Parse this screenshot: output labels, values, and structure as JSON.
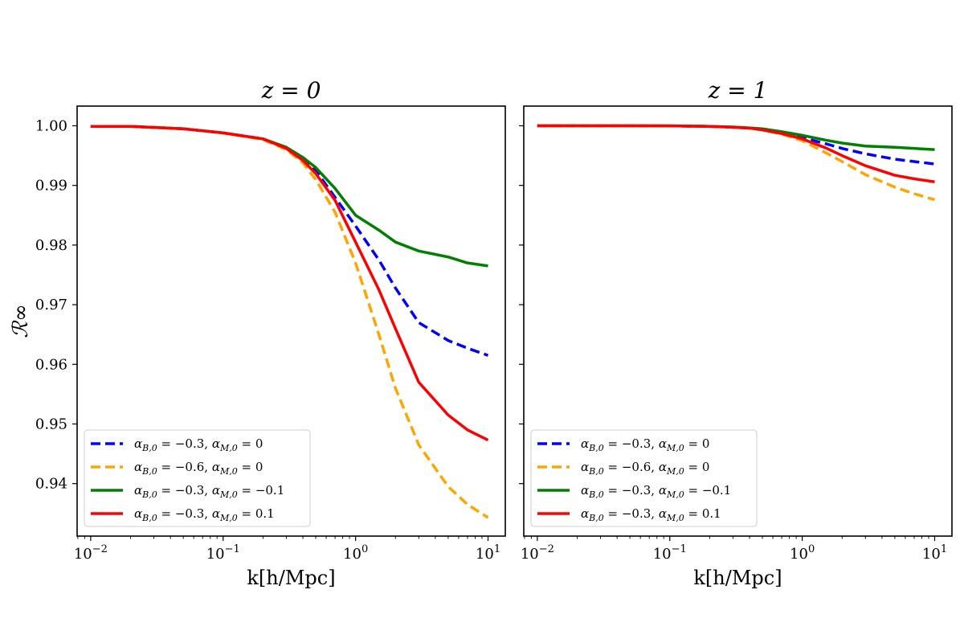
{
  "figure_title": "",
  "chart_data": [
    {
      "type": "line",
      "title": "z = 0",
      "xlabel": "k[h/Mpc]",
      "ylabel": "ℛ∞",
      "xscale": "log",
      "xlim": [
        0.0079,
        13.5
      ],
      "ylim": [
        0.9312,
        1.0033
      ],
      "xticks": [
        {
          "value": 0.01,
          "base": "10",
          "exp": "−2"
        },
        {
          "value": 0.1,
          "base": "10",
          "exp": "−1"
        },
        {
          "value": 1,
          "base": "10",
          "exp": "0"
        },
        {
          "value": 10,
          "base": "10",
          "exp": "1"
        }
      ],
      "yticks": [
        {
          "value": 0.94,
          "label": "0.94"
        },
        {
          "value": 0.95,
          "label": "0.95"
        },
        {
          "value": 0.96,
          "label": "0.96"
        },
        {
          "value": 0.97,
          "label": "0.97"
        },
        {
          "value": 0.98,
          "label": "0.98"
        },
        {
          "value": 0.99,
          "label": "0.99"
        },
        {
          "value": 1.0,
          "label": "1.00"
        }
      ],
      "show_ytick_labels": true,
      "legend": "lower-left",
      "x": [
        0.01,
        0.02,
        0.05,
        0.1,
        0.2,
        0.3,
        0.4,
        0.5,
        0.7,
        1.0,
        1.5,
        2.0,
        3.0,
        5.0,
        7.0,
        10.0
      ],
      "series": [
        {
          "name": "αB,0 = −0.3, αM,0 = 0",
          "color": "#0000ff",
          "dash": true,
          "values": [
            0.9999,
            0.9999,
            0.9995,
            0.9988,
            0.9978,
            0.9963,
            0.9945,
            0.9925,
            0.988,
            0.9832,
            0.9775,
            0.9728,
            0.967,
            0.964,
            0.9627,
            0.9615
          ]
        },
        {
          "name": "αB,0 = −0.6, αM,0 = 0",
          "color": "#ffa500",
          "dash": true,
          "values": [
            0.9999,
            0.9999,
            0.9995,
            0.9988,
            0.9977,
            0.996,
            0.9938,
            0.991,
            0.9855,
            0.977,
            0.965,
            0.956,
            0.9465,
            0.9395,
            0.9365,
            0.9343
          ]
        },
        {
          "name": "αB,0 = −0.3, αM,0 = −0.1",
          "color": "#008000",
          "dash": false,
          "values": [
            0.9999,
            0.9999,
            0.9995,
            0.9988,
            0.9978,
            0.9964,
            0.9947,
            0.993,
            0.9895,
            0.985,
            0.9825,
            0.9805,
            0.979,
            0.978,
            0.977,
            0.9765
          ]
        },
        {
          "name": "αB,0 = −0.3, αM,0 = 0.1",
          "color": "#ff0000",
          "dash": false,
          "values": [
            0.9999,
            0.9999,
            0.9995,
            0.9988,
            0.9978,
            0.9962,
            0.9942,
            0.992,
            0.9875,
            0.9805,
            0.9725,
            0.966,
            0.957,
            0.9515,
            0.949,
            0.9473
          ]
        }
      ],
      "legend_entries": [
        {
          "alpha_b_sym": "α",
          "alpha_b_sub": "B,0",
          "alpha_b_val": " = −0.3, ",
          "alpha_m_sym": "α",
          "alpha_m_sub": "M,0",
          "alpha_m_val": " = 0"
        },
        {
          "alpha_b_sym": "α",
          "alpha_b_sub": "B,0",
          "alpha_b_val": " = −0.6, ",
          "alpha_m_sym": "α",
          "alpha_m_sub": "M,0",
          "alpha_m_val": " = 0"
        },
        {
          "alpha_b_sym": "α",
          "alpha_b_sub": "B,0",
          "alpha_b_val": " = −0.3, ",
          "alpha_m_sym": "α",
          "alpha_m_sub": "M,0",
          "alpha_m_val": " = −0.1"
        },
        {
          "alpha_b_sym": "α",
          "alpha_b_sub": "B,0",
          "alpha_b_val": " = −0.3, ",
          "alpha_m_sym": "α",
          "alpha_m_sub": "M,0",
          "alpha_m_val": " = 0.1"
        }
      ]
    },
    {
      "type": "line",
      "title": "z = 1",
      "xlabel": "k[h/Mpc]",
      "ylabel": "",
      "xscale": "log",
      "xlim": [
        0.0079,
        13.5
      ],
      "ylim": [
        0.9312,
        1.0033
      ],
      "xticks": [
        {
          "value": 0.01,
          "base": "10",
          "exp": "−2"
        },
        {
          "value": 0.1,
          "base": "10",
          "exp": "−1"
        },
        {
          "value": 1,
          "base": "10",
          "exp": "0"
        },
        {
          "value": 10,
          "base": "10",
          "exp": "1"
        }
      ],
      "yticks": [
        {
          "value": 0.94,
          "label": ""
        },
        {
          "value": 0.95,
          "label": ""
        },
        {
          "value": 0.96,
          "label": ""
        },
        {
          "value": 0.97,
          "label": ""
        },
        {
          "value": 0.98,
          "label": ""
        },
        {
          "value": 0.99,
          "label": ""
        },
        {
          "value": 1.0,
          "label": ""
        }
      ],
      "show_ytick_labels": false,
      "legend": "lower-left",
      "x": [
        0.01,
        0.02,
        0.05,
        0.1,
        0.2,
        0.3,
        0.4,
        0.5,
        0.7,
        1.0,
        1.5,
        2.0,
        3.0,
        5.0,
        7.0,
        10.0
      ],
      "series": [
        {
          "name": "αB,0 = −0.3, αM,0 = 0",
          "color": "#0000ff",
          "dash": true,
          "values": [
            1.0,
            1.0,
            1.0,
            0.99998,
            0.9999,
            0.99975,
            0.9996,
            0.99935,
            0.9988,
            0.998,
            0.997,
            0.9962,
            0.9953,
            0.9944,
            0.994,
            0.9936
          ]
        },
        {
          "name": "αB,0 = −0.6, αM,0 = 0",
          "color": "#ffa500",
          "dash": true,
          "values": [
            1.0,
            1.0,
            1.0,
            0.99998,
            0.9999,
            0.99975,
            0.9996,
            0.9993,
            0.9986,
            0.9975,
            0.9955,
            0.994,
            0.9918,
            0.9897,
            0.9886,
            0.9876
          ]
        },
        {
          "name": "αB,0 = −0.3, αM,0 = −0.1",
          "color": "#008000",
          "dash": false,
          "values": [
            1.0,
            1.0,
            1.0,
            0.99998,
            0.9999,
            0.9998,
            0.99965,
            0.9995,
            0.999,
            0.9984,
            0.9976,
            0.9971,
            0.9966,
            0.9964,
            0.9962,
            0.996
          ]
        },
        {
          "name": "αB,0 = −0.3, αM,0 = 0.1",
          "color": "#ff0000",
          "dash": false,
          "values": [
            1.0,
            1.0,
            1.0,
            0.99998,
            0.9999,
            0.99975,
            0.9996,
            0.9993,
            0.9987,
            0.9978,
            0.9963,
            0.995,
            0.9933,
            0.9917,
            0.9911,
            0.9906
          ]
        }
      ],
      "legend_entries": [
        {
          "alpha_b_sym": "α",
          "alpha_b_sub": "B,0",
          "alpha_b_val": " = −0.3, ",
          "alpha_m_sym": "α",
          "alpha_m_sub": "M,0",
          "alpha_m_val": " = 0"
        },
        {
          "alpha_b_sym": "α",
          "alpha_b_sub": "B,0",
          "alpha_b_val": " = −0.6, ",
          "alpha_m_sym": "α",
          "alpha_m_sub": "M,0",
          "alpha_m_val": " = 0"
        },
        {
          "alpha_b_sym": "α",
          "alpha_b_sub": "B,0",
          "alpha_b_val": " = −0.3, ",
          "alpha_m_sym": "α",
          "alpha_m_sub": "M,0",
          "alpha_m_val": " = −0.1"
        },
        {
          "alpha_b_sym": "α",
          "alpha_b_sub": "B,0",
          "alpha_b_val": " = −0.3, ",
          "alpha_m_sym": "α",
          "alpha_m_sub": "M,0",
          "alpha_m_val": " = 0.1"
        }
      ]
    }
  ]
}
